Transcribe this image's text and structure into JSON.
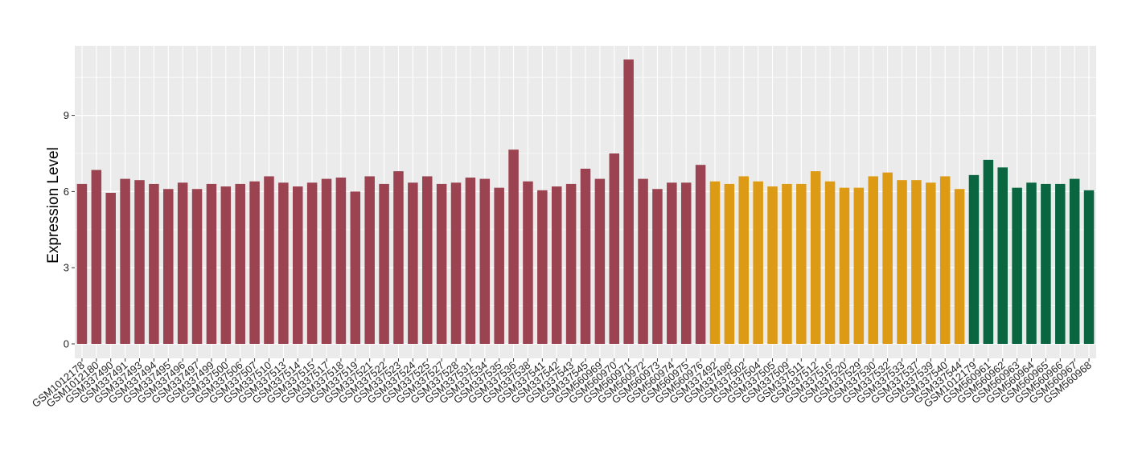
{
  "chart_data": {
    "type": "bar",
    "title": "",
    "xlabel": "",
    "ylabel": "Expression Level",
    "ylim": [
      0,
      11.7
    ],
    "yticks": [
      0,
      3,
      6,
      9
    ],
    "grid": true,
    "legend": "none",
    "colors": {
      "group1": "#9b4350",
      "group2": "#dd9a14",
      "group3": "#0a6640",
      "panel": "#ebebeb",
      "grid": "#ffffff"
    },
    "categories": [
      "GSM1012178",
      "GSM1012180",
      "GSM337490",
      "GSM337491",
      "GSM337493",
      "GSM337494",
      "GSM337495",
      "GSM337496",
      "GSM337497",
      "GSM337499",
      "GSM337500",
      "GSM337506",
      "GSM337507",
      "GSM337510",
      "GSM337513",
      "GSM337514",
      "GSM337515",
      "GSM337517",
      "GSM337518",
      "GSM337519",
      "GSM337521",
      "GSM337522",
      "GSM337523",
      "GSM337524",
      "GSM337525",
      "GSM337527",
      "GSM337528",
      "GSM337531",
      "GSM337534",
      "GSM337535",
      "GSM337536",
      "GSM337538",
      "GSM337541",
      "GSM337542",
      "GSM337543",
      "GSM337545",
      "GSM560969",
      "GSM560970",
      "GSM560971",
      "GSM560972",
      "GSM560973",
      "GSM560974",
      "GSM560975",
      "GSM560976",
      "GSM337492",
      "GSM337498",
      "GSM337502",
      "GSM337504",
      "GSM337505",
      "GSM337509",
      "GSM337511",
      "GSM337512",
      "GSM337516",
      "GSM337520",
      "GSM337529",
      "GSM337530",
      "GSM337532",
      "GSM337533",
      "GSM337537",
      "GSM337539",
      "GSM337540",
      "GSM337544",
      "GSM1012179",
      "GSM560961",
      "GSM560962",
      "GSM560963",
      "GSM560964",
      "GSM560965",
      "GSM560966",
      "GSM560967",
      "GSM560968"
    ],
    "values": [
      6.3,
      6.85,
      5.95,
      6.5,
      6.45,
      6.3,
      6.1,
      6.35,
      6.1,
      6.3,
      6.2,
      6.3,
      6.4,
      6.6,
      6.35,
      6.2,
      6.35,
      6.5,
      6.55,
      6.0,
      6.6,
      6.3,
      6.8,
      6.35,
      6.6,
      6.3,
      6.35,
      6.55,
      6.5,
      6.15,
      7.65,
      6.4,
      6.05,
      6.2,
      6.3,
      6.9,
      6.5,
      7.5,
      11.2,
      6.5,
      6.1,
      6.35,
      6.35,
      7.05,
      6.4,
      6.3,
      6.6,
      6.4,
      6.2,
      6.3,
      6.3,
      6.8,
      6.4,
      6.15,
      6.15,
      6.6,
      6.75,
      6.45,
      6.45,
      6.35,
      6.6,
      6.1,
      6.65,
      7.25,
      6.95,
      6.15,
      6.35,
      6.3,
      6.3,
      6.5,
      6.05
    ],
    "groups": [
      1,
      1,
      1,
      1,
      1,
      1,
      1,
      1,
      1,
      1,
      1,
      1,
      1,
      1,
      1,
      1,
      1,
      1,
      1,
      1,
      1,
      1,
      1,
      1,
      1,
      1,
      1,
      1,
      1,
      1,
      1,
      1,
      1,
      1,
      1,
      1,
      1,
      1,
      1,
      1,
      1,
      1,
      1,
      1,
      2,
      2,
      2,
      2,
      2,
      2,
      2,
      2,
      2,
      2,
      2,
      2,
      2,
      2,
      2,
      2,
      2,
      2,
      3,
      3,
      3,
      3,
      3,
      3,
      3,
      3,
      3
    ]
  }
}
